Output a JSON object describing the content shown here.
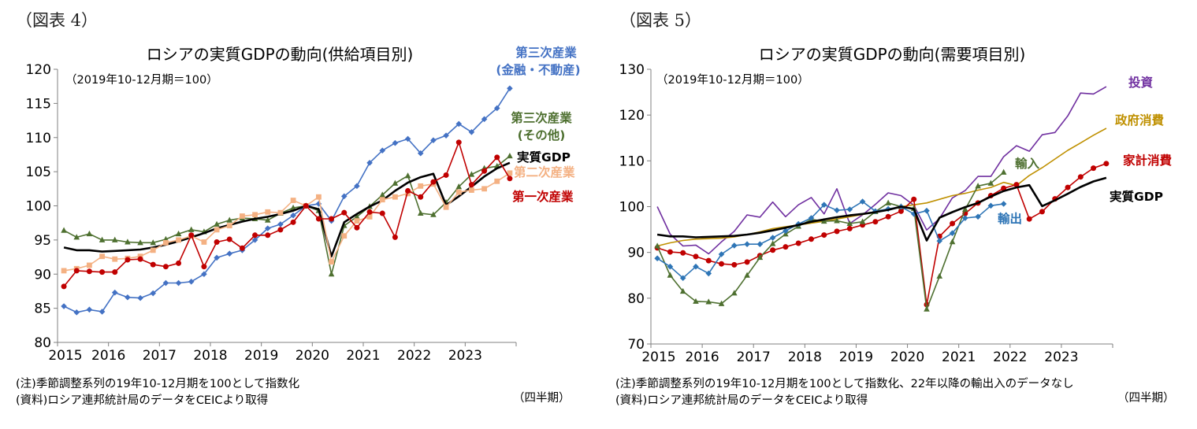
{
  "figures": {
    "left": {
      "label": "（図表 4）",
      "note": "(注)季節調整系列の19年10-12月期を100として指数化",
      "source": "(資料)ロシア連邦統計局のデータをCEICより取得",
      "unit": "（四半期）"
    },
    "right": {
      "label": "（図表 5）",
      "note": "(注)季節調整系列の19年10-12月期を100として指数化、22年以降の輸出入のデータなし",
      "source": "(資料)ロシア連邦統計局のデータをCEICより取得",
      "unit": "（四半期）"
    }
  },
  "chart_data": [
    {
      "type": "line",
      "title": "ロシアの実質GDPの動向(供給項目別)",
      "subtitle": "（2019年10-12月期＝100）",
      "xlabel": "",
      "ylabel": "",
      "ylim": [
        80,
        120
      ],
      "yticks": [
        80,
        85,
        90,
        95,
        100,
        105,
        110,
        115,
        120
      ],
      "xticks": [
        "2015",
        "2016",
        "2017",
        "2018",
        "2019",
        "2020",
        "2021",
        "2022",
        "2023"
      ],
      "x_start": "2015Q1",
      "series": [
        {
          "name": "第三次産業(金融・不動産)",
          "label_lines": [
            "第三次産業",
            "(金融・不動産)"
          ],
          "color": "#4472c4",
          "marker": "diamond",
          "values": [
            85.3,
            84.4,
            84.8,
            84.5,
            87.3,
            86.6,
            86.5,
            87.2,
            88.7,
            88.7,
            88.9,
            90,
            92.4,
            93,
            93.5,
            95,
            96.7,
            97.3,
            98.6,
            100,
            100.3,
            97.8,
            101.4,
            102.9,
            106.3,
            108.1,
            109.2,
            109.8,
            107.7,
            109.6,
            110.3,
            112,
            110.8,
            112.7,
            114.3,
            117.2
          ]
        },
        {
          "name": "第三次産業(その他)",
          "label_lines": [
            "第三次産業",
            "(その他)"
          ],
          "color": "#4e7030",
          "marker": "triangle",
          "values": [
            96.4,
            95.4,
            95.9,
            95,
            95,
            94.7,
            94.6,
            94.6,
            95.1,
            95.9,
            96.5,
            96.2,
            97.3,
            97.9,
            98.2,
            98.1,
            97.9,
            98.9,
            99.7,
            100,
            99.3,
            90,
            97.1,
            98.4,
            99.9,
            101.6,
            103.3,
            104.4,
            98.9,
            98.7,
            100.5,
            102.8,
            104.6,
            105.5,
            105.8,
            107.3
          ]
        },
        {
          "name": "実質GDP",
          "label_lines": [
            "実質GDP"
          ],
          "color": "#000000",
          "marker": "none",
          "values": [
            93.9,
            93.5,
            93.5,
            93.3,
            93.4,
            93.5,
            93.6,
            93.9,
            94.3,
            94.8,
            95.4,
            96,
            96.7,
            97.2,
            97.7,
            98.1,
            98.4,
            98.8,
            99.3,
            100,
            99.5,
            92.6,
            97.6,
            98.8,
            99.9,
            100.8,
            102.2,
            103.4,
            104.2,
            104.7,
            100.1,
            101.4,
            102.8,
            104.3,
            105.5,
            106.3
          ]
        },
        {
          "name": "第二次産業",
          "label_lines": [
            "第二次産業"
          ],
          "color": "#f4b183",
          "marker": "square",
          "values": [
            90.5,
            90.8,
            91.3,
            92.6,
            92.2,
            92.3,
            92.6,
            93.5,
            94.6,
            95,
            95.6,
            94.7,
            96.5,
            97.1,
            98.5,
            98.7,
            99.1,
            99,
            100.8,
            100,
            101.3,
            91.8,
            95.6,
            97.8,
            98.4,
            100.9,
            101.3,
            101.8,
            102.9,
            103.2,
            99.8,
            102,
            102.3,
            102.5,
            103.6,
            104.8
          ]
        },
        {
          "name": "第一次産業",
          "label_lines": [
            "第一次産業"
          ],
          "color": "#c00000",
          "marker": "circle",
          "values": [
            88.2,
            90.5,
            90.4,
            90.3,
            90.3,
            92.1,
            92.2,
            91.4,
            91.1,
            91.6,
            95.7,
            91.1,
            94.7,
            95.1,
            93.8,
            95.7,
            95.7,
            96.5,
            97.6,
            100,
            98.1,
            98.1,
            99,
            96.8,
            99.1,
            98.9,
            95.4,
            102.2,
            101.3,
            103.5,
            104.5,
            109.3,
            103.1,
            105.1,
            107.1,
            104
          ]
        }
      ]
    },
    {
      "type": "line",
      "title": "ロシアの実質GDPの動向(需要項目別)",
      "subtitle": "（2019年10-12月期＝100）",
      "xlabel": "",
      "ylabel": "",
      "ylim": [
        70,
        130
      ],
      "yticks": [
        70,
        80,
        90,
        100,
        110,
        120,
        130
      ],
      "xticks": [
        "2015",
        "2016",
        "2017",
        "2018",
        "2019",
        "2020",
        "2021",
        "2022",
        "2023"
      ],
      "x_start": "2015Q1",
      "series": [
        {
          "name": "投資",
          "label_lines": [
            "投資"
          ],
          "color": "#7030a0",
          "marker": "none",
          "values": [
            100,
            94,
            91.4,
            91.6,
            89.7,
            92.3,
            94.6,
            98.2,
            97.7,
            101,
            97.8,
            100.4,
            102,
            98.4,
            103.9,
            96.3,
            98.2,
            100.5,
            103,
            102.4,
            100.3,
            94.9,
            97.4,
            101.9,
            103.5,
            106.6,
            106.6,
            110.9,
            113.3,
            112.1,
            115.7,
            116.2,
            119.8,
            124.8,
            124.6,
            126.2
          ]
        },
        {
          "name": "政府消費",
          "label_lines": [
            "政府消費"
          ],
          "color": "#bf9000",
          "marker": "none",
          "values": [
            91.4,
            92.1,
            92.6,
            92.9,
            93,
            93.1,
            93.4,
            93.9,
            94.5,
            95.2,
            95.6,
            96,
            96.4,
            96.8,
            97.3,
            97.8,
            98.3,
            98.8,
            99.3,
            100,
            100.4,
            100.8,
            101.6,
            102.4,
            102.9,
            103.6,
            104.2,
            105.3,
            104.6,
            106.8,
            108.5,
            110.4,
            112.3,
            113.9,
            115.6,
            117.1
          ]
        },
        {
          "name": "家計消費",
          "label_lines": [
            "家計消費"
          ],
          "color": "#c00000",
          "marker": "circle",
          "values": [
            91,
            90.1,
            89.9,
            89.1,
            88.2,
            87.5,
            87.3,
            87.9,
            89.3,
            90.5,
            91.2,
            92,
            92.9,
            93.8,
            94.6,
            95.2,
            96,
            96.7,
            97.8,
            99,
            101.6,
            78.6,
            93.5,
            96.3,
            98.5,
            100.8,
            102.4,
            104,
            104.8,
            97.3,
            98.9,
            101.7,
            104.2,
            106.5,
            108.4,
            109.4
          ]
        },
        {
          "name": "輸入",
          "label_lines": [
            "輸入"
          ],
          "color": "#4e7030",
          "marker": "triangle",
          "values": [
            91.4,
            85,
            81.5,
            79.3,
            79.2,
            78.8,
            81.1,
            85,
            88.9,
            91.9,
            94,
            95.7,
            97.2,
            96.8,
            96.9,
            96.3,
            96.7,
            98.9,
            100.8,
            100,
            99.6,
            77.6,
            84.8,
            92.3,
            99.4,
            104.5,
            105.1,
            107.5
          ]
        },
        {
          "name": "輸出",
          "label_lines": [
            "輸出"
          ],
          "color": "#2e75b6",
          "marker": "diamond",
          "values": [
            88.7,
            86.9,
            84.4,
            86.9,
            85.4,
            89.6,
            91.5,
            91.8,
            91.8,
            93.2,
            94.7,
            96.2,
            97.5,
            100.4,
            99.2,
            99.4,
            101.1,
            99,
            99.5,
            100,
            98.4,
            99.1,
            92.5,
            94.2,
            97.5,
            97.8,
            100.2,
            100.6
          ]
        },
        {
          "name": "実質GDP",
          "label_lines": [
            "実質GDP"
          ],
          "color": "#000000",
          "marker": "none",
          "values": [
            93.9,
            93.5,
            93.5,
            93.3,
            93.4,
            93.5,
            93.6,
            93.9,
            94.3,
            94.8,
            95.4,
            96,
            96.7,
            97.2,
            97.7,
            98.1,
            98.4,
            98.8,
            99.3,
            100,
            99.5,
            92.6,
            97.6,
            98.8,
            99.9,
            100.8,
            102.2,
            103.4,
            104.2,
            104.7,
            100.1,
            101.4,
            102.8,
            104.3,
            105.5,
            106.3
          ]
        }
      ]
    }
  ]
}
